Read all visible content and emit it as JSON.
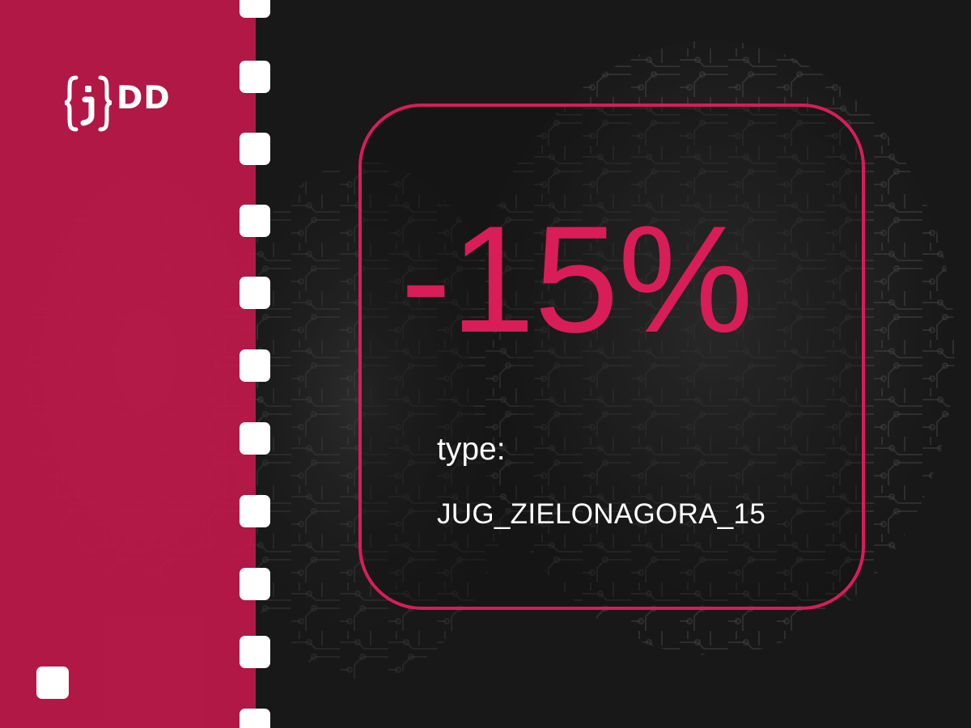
{
  "brand": {
    "logo_text": "DD",
    "accent_color": "#d81d59",
    "panel_color": "#bf194b"
  },
  "coupon": {
    "discount": "-15%",
    "instruction": "type:",
    "code": "JUG_ZIELONAGORA_15"
  },
  "icons": {
    "logo_icon": "curly-brace-semicolon-icon",
    "ticket_perforation": "rounded-square-hole"
  }
}
